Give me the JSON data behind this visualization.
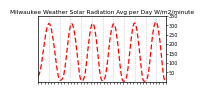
{
  "title": "Milwaukee Weather Solar Radiation Avg per Day W/m2/minute",
  "line_color": "#ff0000",
  "line_style": "--",
  "line_width": 0.9,
  "background_color": "#ffffff",
  "grid_color": "#aaaaaa",
  "ylim": [
    0,
    350
  ],
  "yticks": [
    50,
    100,
    150,
    200,
    250,
    300,
    350
  ],
  "values": [
    30,
    40,
    60,
    90,
    130,
    170,
    210,
    250,
    280,
    300,
    310,
    305,
    290,
    260,
    225,
    185,
    140,
    95,
    55,
    25,
    10,
    8,
    12,
    20,
    40,
    75,
    120,
    170,
    220,
    265,
    295,
    310,
    305,
    285,
    255,
    215,
    165,
    115,
    65,
    25,
    8,
    5,
    10,
    25,
    55,
    100,
    155,
    205,
    250,
    285,
    305,
    310,
    298,
    270,
    230,
    180,
    125,
    70,
    30,
    10,
    5,
    8,
    18,
    40,
    80,
    130,
    185,
    235,
    270,
    295,
    308,
    305,
    285,
    250,
    205,
    155,
    100,
    50,
    18,
    5,
    3,
    8,
    20,
    48,
    90,
    145,
    200,
    250,
    285,
    308,
    312,
    300,
    270,
    228,
    178,
    122,
    68,
    25,
    6,
    3,
    5,
    12,
    30,
    65,
    115,
    170,
    225,
    268,
    298,
    315,
    318,
    302,
    272,
    230,
    178,
    120,
    62,
    20,
    4,
    2
  ],
  "num_gridlines": 11,
  "xlabel_fontsize": 3.5,
  "ylabel_fontsize": 3.5,
  "title_fontsize": 4.2,
  "dashes": [
    4,
    2
  ],
  "linewidth": 0.9
}
